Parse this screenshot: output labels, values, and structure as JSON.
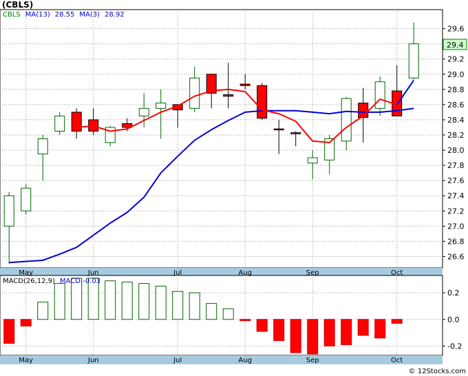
{
  "title": "(CBLS)",
  "price_legend": [
    {
      "label": "CBLS",
      "color": "#008000"
    },
    {
      "label": "MA(13)",
      "color": "#0000cc"
    },
    {
      "label": "28.55",
      "color": "#0000cc"
    },
    {
      "label": "MA(3)",
      "color": "#0000cc"
    },
    {
      "label": "28.92",
      "color": "#0000cc"
    }
  ],
  "macd_legend": [
    {
      "label": "MACD(26,12,9)",
      "color": "#000000"
    },
    {
      "label": "MACD:-0.03",
      "color": "#0000cc"
    }
  ],
  "last_price_label": "29.4",
  "footer": "© 12Stocks.com",
  "colors": {
    "up_body": "#ffffff",
    "up_line": "#006400",
    "down_body": "#ff0000",
    "down_line": "#000000",
    "ma13": "#0000dd",
    "ma3": "#ff0000",
    "grid": "#999999",
    "axis_band": "#a6cadf",
    "last_price_bg": "#ccffcc"
  },
  "chart_data": [
    {
      "type": "candlestick",
      "title": "(CBLS)",
      "ylim": [
        26.45,
        29.85
      ],
      "yticks": [
        26.6,
        26.8,
        27.0,
        27.2,
        27.4,
        27.6,
        27.8,
        28.0,
        28.2,
        28.4,
        28.6,
        28.8,
        29.0,
        29.2,
        29.4,
        29.6
      ],
      "x_month_labels": [
        {
          "label": "May",
          "at": 1.0
        },
        {
          "label": "Jun",
          "at": 5.0
        },
        {
          "label": "Jul",
          "at": 10.0
        },
        {
          "label": "Aug",
          "at": 14.0
        },
        {
          "label": "Sep",
          "at": 18.0
        },
        {
          "label": "Oct",
          "at": 23.0
        }
      ],
      "grid": true,
      "candles": [
        {
          "open": 27.0,
          "close": 27.4,
          "high": 27.45,
          "low": 26.5
        },
        {
          "open": 27.2,
          "close": 27.5,
          "high": 27.55,
          "low": 27.15
        },
        {
          "open": 27.95,
          "close": 28.15,
          "high": 28.2,
          "low": 27.6
        },
        {
          "open": 28.25,
          "close": 28.45,
          "high": 28.5,
          "low": 28.2
        },
        {
          "open": 28.5,
          "close": 28.25,
          "high": 28.55,
          "low": 28.15
        },
        {
          "open": 28.4,
          "close": 28.25,
          "high": 28.55,
          "low": 28.2
        },
        {
          "open": 28.1,
          "close": 28.3,
          "high": 28.32,
          "low": 28.05
        },
        {
          "open": 28.35,
          "close": 28.3,
          "high": 28.42,
          "low": 28.25
        },
        {
          "open": 28.45,
          "close": 28.55,
          "high": 28.75,
          "low": 28.3
        },
        {
          "open": 28.55,
          "close": 28.62,
          "high": 28.8,
          "low": 28.15
        },
        {
          "open": 28.6,
          "close": 28.53,
          "high": 28.6,
          "low": 28.3
        },
        {
          "open": 28.55,
          "close": 28.95,
          "high": 29.1,
          "low": 28.5
        },
        {
          "open": 29.0,
          "close": 28.75,
          "high": 29.0,
          "low": 28.55
        },
        {
          "open": 28.73,
          "close": 28.71,
          "high": 29.15,
          "low": 28.55
        },
        {
          "open": 28.87,
          "close": 28.85,
          "high": 29.0,
          "low": 28.8
        },
        {
          "open": 28.85,
          "close": 28.42,
          "high": 28.88,
          "low": 28.4
        },
        {
          "open": 28.28,
          "close": 28.27,
          "high": 28.4,
          "low": 27.95
        },
        {
          "open": 28.23,
          "close": 28.22,
          "high": 28.25,
          "low": 28.05
        },
        {
          "open": 27.83,
          "close": 27.9,
          "high": 28.0,
          "low": 27.62
        },
        {
          "open": 27.87,
          "close": 28.15,
          "high": 28.2,
          "low": 27.68
        },
        {
          "open": 28.12,
          "close": 28.68,
          "high": 28.7,
          "low": 28.0
        },
        {
          "open": 28.62,
          "close": 28.43,
          "high": 28.82,
          "low": 28.1
        },
        {
          "open": 28.55,
          "close": 28.9,
          "high": 28.97,
          "low": 28.45
        },
        {
          "open": 28.78,
          "close": 28.45,
          "high": 29.12,
          "low": 28.45
        },
        {
          "open": 28.95,
          "close": 29.4,
          "high": 29.68,
          "low": 28.93
        }
      ],
      "series": [
        {
          "name": "MA(13)",
          "color": "#0000dd",
          "x": [
            0,
            2,
            3,
            4,
            5,
            6,
            7,
            8,
            9,
            10,
            11,
            12,
            13,
            14,
            15,
            16,
            17,
            18,
            19,
            20,
            21,
            22,
            23,
            24
          ],
          "values": [
            26.52,
            26.55,
            26.63,
            26.72,
            26.88,
            27.04,
            27.18,
            27.38,
            27.7,
            27.92,
            28.13,
            28.27,
            28.39,
            28.5,
            28.52,
            28.52,
            28.52,
            28.5,
            28.48,
            28.51,
            28.5,
            28.5,
            28.52,
            28.55
          ]
        },
        {
          "name": "MA(3)",
          "color": "#ff0000",
          "x": [
            4,
            5,
            6,
            7,
            8,
            9,
            10,
            11,
            12,
            13,
            14,
            15,
            16,
            17,
            18,
            19,
            20,
            21,
            22,
            23
          ],
          "values": [
            28.3,
            28.32,
            28.25,
            28.28,
            28.39,
            28.5,
            28.58,
            28.71,
            28.78,
            28.8,
            28.77,
            28.53,
            28.48,
            28.38,
            28.12,
            28.1,
            28.3,
            28.45,
            28.67,
            28.6
          ]
        },
        {
          "name": "MA(3)",
          "color": "#0000dd",
          "x": [
            23,
            24
          ],
          "values": [
            28.6,
            28.92
          ]
        }
      ]
    },
    {
      "type": "bar",
      "title": "MACD(26,12,9)",
      "ylim": [
        -0.27,
        0.33
      ],
      "yticks": [
        -0.2,
        0.0,
        0.2
      ],
      "yticklabels": [
        "-0.2",
        "0.0",
        "0.2"
      ],
      "x_month_labels": [
        {
          "label": "May",
          "at": 1.0
        },
        {
          "label": "Jun",
          "at": 5.0
        },
        {
          "label": "Jul",
          "at": 10.0
        },
        {
          "label": "Aug",
          "at": 14.0
        },
        {
          "label": "Sep",
          "at": 18.0
        },
        {
          "label": "Oct",
          "at": 23.0
        }
      ],
      "grid": true,
      "values": [
        -0.18,
        -0.05,
        0.13,
        0.27,
        0.31,
        0.31,
        0.29,
        0.28,
        0.27,
        0.25,
        0.21,
        0.2,
        0.12,
        0.08,
        -0.01,
        -0.09,
        -0.16,
        -0.25,
        -0.26,
        -0.2,
        -0.19,
        -0.12,
        -0.14,
        -0.03
      ]
    }
  ]
}
